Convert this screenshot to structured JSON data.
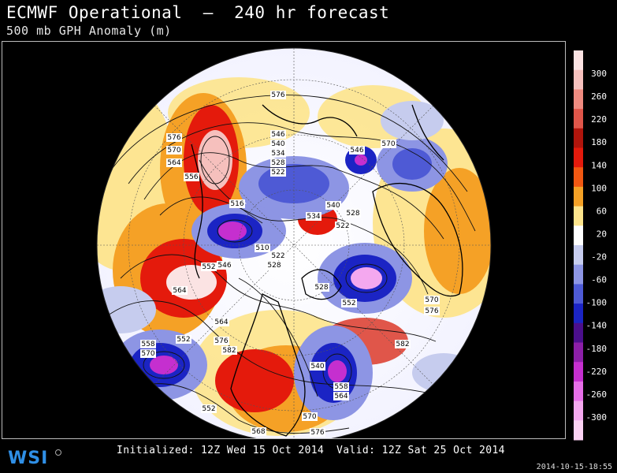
{
  "header": {
    "title": "ECMWF Operational  –  240 hr forecast",
    "subtitle": "500 mb GPH Anomaly (m)"
  },
  "footer": {
    "initialized": "Initialized: 12Z Wed 15 Oct 2014",
    "valid": "Valid: 12Z Sat 25 Oct 2014",
    "timestamp": "2014-10-15-18:55"
  },
  "brand": {
    "logo_text": "WSI"
  },
  "colorbar": {
    "ticks": [
      "300",
      "260",
      "220",
      "180",
      "140",
      "100",
      "60",
      "20",
      "-20",
      "-60",
      "-100",
      "-140",
      "-180",
      "-220",
      "-260",
      "-300"
    ],
    "colors": [
      "#fbe3e3",
      "#f6c0bd",
      "#ef8b80",
      "#e0564a",
      "#b0150c",
      "#e41a0c",
      "#f25812",
      "#f5a126",
      "#fde48c",
      "#ffffff",
      "#c6ccee",
      "#8d95e4",
      "#4e5ad5",
      "#1b24c4",
      "#4b0f8c",
      "#8c1fa8",
      "#c52fcf",
      "#e66ee8",
      "#f4a8ef",
      "#fbd2f3"
    ]
  },
  "contour_labels": [
    "576",
    "576",
    "570",
    "564",
    "556",
    "546",
    "540",
    "534",
    "528",
    "522",
    "546",
    "570",
    "516",
    "540",
    "534",
    "528",
    "522",
    "510",
    "522",
    "528",
    "552",
    "546",
    "564",
    "528",
    "552",
    "570",
    "576",
    "564",
    "576",
    "552",
    "558",
    "570",
    "582",
    "540",
    "558",
    "564",
    "570",
    "576",
    "582",
    "552",
    "568"
  ]
}
